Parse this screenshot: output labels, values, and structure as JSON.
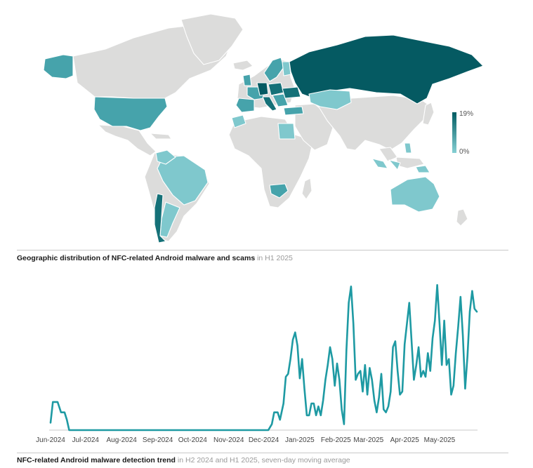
{
  "map": {
    "caption_bold": "Geographic distribution of NFC-related Android malware and scams",
    "caption_rest": "in H1 2025",
    "colors": {
      "none": "#dcdcdb",
      "low": "#7fc8cd",
      "mid": "#46a3ab",
      "high": "#157178",
      "top": "#055a62"
    }
  },
  "chart_data": [
    {
      "type": "choropleth-map",
      "colorbar": {
        "max_label": "19%",
        "min_label": "0%",
        "min": 0,
        "max": 19,
        "color_min": "#86d0d4",
        "color_max": "#005c62"
      }
    },
    {
      "type": "line",
      "title": "",
      "caption_bold": "NFC-related Android malware detection trend",
      "caption_rest": "in H2 2024 and H1 2025, seven-day moving average",
      "color": "#1e9aa3",
      "x_ticks": [
        "Jun-2024",
        "Jul-2024",
        "Aug-2024",
        "Sep-2024",
        "Oct-2024",
        "Nov-2024",
        "Dec-2024",
        "Jan-2025",
        "Feb-2025",
        "Mar-2025",
        "Apr-2025",
        "May-2025"
      ],
      "ylim": [
        0,
        100
      ],
      "x": [
        "2024-06-01",
        "2024-06-03",
        "2024-06-07",
        "2024-06-10",
        "2024-06-13",
        "2024-06-15",
        "2024-06-17",
        "2024-07-01",
        "2024-08-01",
        "2024-09-01",
        "2024-10-01",
        "2024-11-01",
        "2024-12-01",
        "2024-12-05",
        "2024-12-08",
        "2024-12-10",
        "2024-12-13",
        "2024-12-15",
        "2024-12-18",
        "2024-12-20",
        "2024-12-22",
        "2024-12-24",
        "2024-12-26",
        "2024-12-28",
        "2024-12-30",
        "2025-01-01",
        "2025-01-03",
        "2025-01-05",
        "2025-01-07",
        "2025-01-09",
        "2025-01-11",
        "2025-01-13",
        "2025-01-15",
        "2025-01-17",
        "2025-01-19",
        "2025-01-21",
        "2025-01-23",
        "2025-01-25",
        "2025-01-27",
        "2025-01-29",
        "2025-01-31",
        "2025-02-02",
        "2025-02-04",
        "2025-02-06",
        "2025-02-08",
        "2025-02-10",
        "2025-02-12",
        "2025-02-14",
        "2025-02-16",
        "2025-02-18",
        "2025-02-20",
        "2025-02-22",
        "2025-02-24",
        "2025-02-26",
        "2025-02-28",
        "2025-03-02",
        "2025-03-04",
        "2025-03-06",
        "2025-03-08",
        "2025-03-10",
        "2025-03-12",
        "2025-03-14",
        "2025-03-16",
        "2025-03-18",
        "2025-03-20",
        "2025-03-22",
        "2025-03-24",
        "2025-03-26",
        "2025-03-28",
        "2025-03-30",
        "2025-04-01",
        "2025-04-03",
        "2025-04-05",
        "2025-04-07",
        "2025-04-09",
        "2025-04-11",
        "2025-04-13",
        "2025-04-15",
        "2025-04-17",
        "2025-04-19",
        "2025-04-21",
        "2025-04-23",
        "2025-04-25",
        "2025-04-27",
        "2025-04-29",
        "2025-05-01",
        "2025-05-03",
        "2025-05-05",
        "2025-05-07",
        "2025-05-09",
        "2025-05-11",
        "2025-05-13",
        "2025-05-15",
        "2025-05-17",
        "2025-05-19",
        "2025-05-21",
        "2025-05-23",
        "2025-05-25",
        "2025-05-27",
        "2025-05-29",
        "2025-05-31",
        "2025-06-02"
      ],
      "y": [
        5,
        19,
        19,
        12,
        12,
        7,
        0,
        0,
        0,
        0,
        0,
        0,
        0,
        0,
        4,
        12,
        12,
        7,
        18,
        36,
        38,
        48,
        61,
        66,
        57,
        35,
        48,
        28,
        10,
        10,
        18,
        18,
        10,
        16,
        10,
        20,
        34,
        44,
        56,
        48,
        30,
        45,
        34,
        14,
        4,
        54,
        86,
        97,
        72,
        34,
        38,
        40,
        26,
        44,
        24,
        42,
        34,
        20,
        12,
        22,
        38,
        14,
        12,
        16,
        26,
        56,
        60,
        40,
        24,
        26,
        58,
        72,
        86,
        60,
        34,
        44,
        56,
        36,
        40,
        36,
        52,
        40,
        62,
        74,
        98,
        72,
        44,
        74,
        44,
        48,
        24,
        30,
        52,
        70,
        90,
        64,
        28,
        50,
        80,
        94,
        82,
        80
      ]
    }
  ]
}
